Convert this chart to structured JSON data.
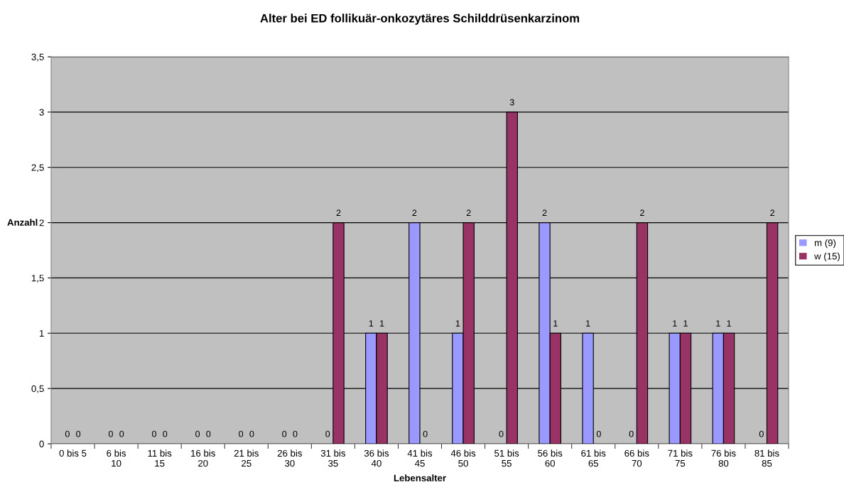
{
  "chart_data": {
    "type": "bar",
    "title": "Alter bei ED follikuär-onkozytäres Schilddrüsenkarzinom",
    "xlabel": "Lebensalter",
    "ylabel": "Anzahl",
    "categories": [
      "0 bis 5",
      "6 bis 10",
      "11 bis 15",
      "16 bis 20",
      "21 bis 25",
      "26 bis 30",
      "31 bis 35",
      "36 bis 40",
      "41 bis 45",
      "46 bis 50",
      "51 bis 55",
      "56 bis 60",
      "61 bis 65",
      "66 bis 70",
      "71 bis 75",
      "76 bis 80",
      "81 bis 85"
    ],
    "series": [
      {
        "name": "m (9)",
        "color": "#9999ff",
        "values": [
          0,
          0,
          0,
          0,
          0,
          0,
          0,
          1,
          2,
          1,
          0,
          2,
          1,
          0,
          1,
          1,
          0
        ]
      },
      {
        "name": "w (15)",
        "color": "#993366",
        "values": [
          0,
          0,
          0,
          0,
          0,
          0,
          2,
          1,
          0,
          2,
          3,
          1,
          0,
          2,
          1,
          1,
          2
        ]
      }
    ],
    "ylim": [
      0,
      3.5
    ],
    "yticks": [
      0,
      {
        "value": 0.5,
        "label": "0,5"
      },
      1,
      {
        "value": 1.5,
        "label": "1,5"
      },
      2,
      {
        "value": 2.5,
        "label": "2,5"
      },
      3,
      {
        "value": 3.5,
        "label": "3,5"
      }
    ],
    "grid": "y",
    "legend": "right",
    "data_labels": true
  }
}
